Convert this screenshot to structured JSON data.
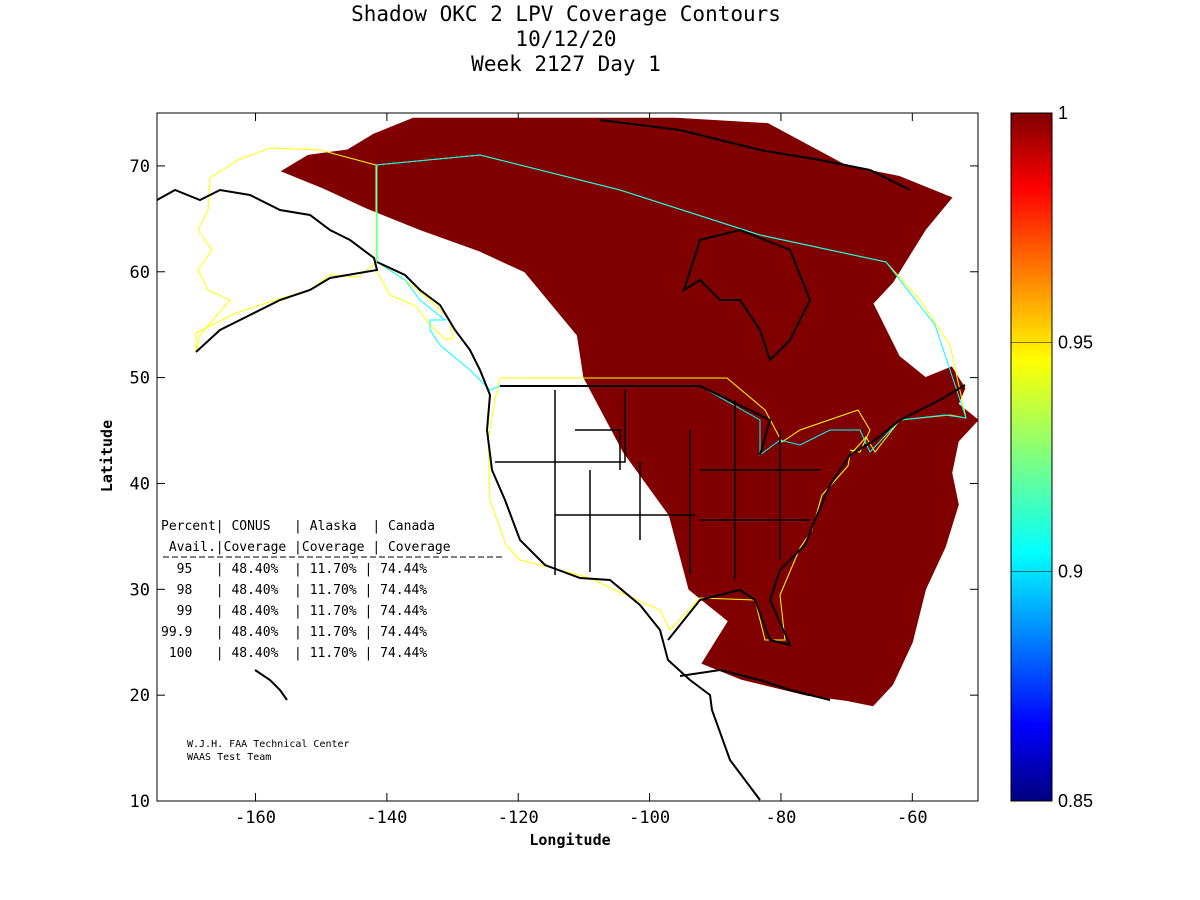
{
  "title": {
    "line1": "Shadow OKC 2 LPV Coverage Contours",
    "line2": "10/12/20",
    "line3": "Week 2127 Day 1"
  },
  "axes": {
    "xlabel": "Longitude",
    "ylabel": "Latitude",
    "xticks": [
      "-160",
      "-140",
      "-120",
      "-100",
      "-80",
      "-60"
    ],
    "yticks": [
      "10",
      "20",
      "30",
      "40",
      "50",
      "60",
      "70"
    ]
  },
  "colorbar": {
    "ticks": [
      "1",
      "0.95",
      "0.9",
      "0.85"
    ],
    "range": [
      0.85,
      1
    ],
    "colormap": "jet"
  },
  "table": {
    "header1": "Percent| CONUS   | Alaska  | Canada",
    "header2": " Avail.|Coverage |Coverage | Coverage",
    "rows": [
      "  95   | 48.40%  | 11.70% | 74.44%",
      "  98   | 48.40%  | 11.70% | 74.44%",
      "  99   | 48.40%  | 11.70% | 74.44%",
      "99.9   | 48.40%  | 11.70% | 74.44%",
      " 100   | 48.40%  | 11.70% | 74.44%"
    ]
  },
  "credit": {
    "line1": "W.J.H. FAA Technical Center",
    "line2": "WAAS Test Team"
  },
  "chart_data": {
    "type": "heatmap",
    "title": "Shadow OKC 2 LPV Coverage Contours",
    "subtitle": [
      "10/12/20",
      "Week 2127 Day 1"
    ],
    "xlabel": "Longitude",
    "ylabel": "Latitude",
    "xlim": [
      -175,
      -50
    ],
    "ylim": [
      10,
      75
    ],
    "color_range": [
      0.85,
      1
    ],
    "coverage_color": "#800000",
    "coverage_value": 1,
    "coverage_region_vertices_lonlat": [
      [
        -156,
        69.5
      ],
      [
        -152,
        71
      ],
      [
        -146,
        71.5
      ],
      [
        -142,
        73
      ],
      [
        -136,
        74.5
      ],
      [
        -126,
        74.5
      ],
      [
        -110,
        74.5
      ],
      [
        -96,
        74.5
      ],
      [
        -82,
        74
      ],
      [
        -76,
        72
      ],
      [
        -70,
        70
      ],
      [
        -62,
        69
      ],
      [
        -54,
        67
      ],
      [
        -58,
        64
      ],
      [
        -63,
        59
      ],
      [
        -66,
        57
      ],
      [
        -62,
        52
      ],
      [
        -58,
        50
      ],
      [
        -54,
        51
      ],
      [
        -52,
        49
      ],
      [
        -53,
        47.5
      ],
      [
        -50,
        46
      ],
      [
        -53,
        44
      ],
      [
        -54,
        41
      ],
      [
        -53,
        38
      ],
      [
        -55,
        34
      ],
      [
        -58,
        30
      ],
      [
        -60,
        25
      ],
      [
        -63,
        21
      ],
      [
        -66,
        19
      ],
      [
        -70,
        19.5
      ],
      [
        -76,
        20
      ],
      [
        -86,
        21.5
      ],
      [
        -92,
        23
      ],
      [
        -88,
        27
      ],
      [
        -94,
        30
      ],
      [
        -97,
        37
      ],
      [
        -104,
        43
      ],
      [
        -110,
        50
      ],
      [
        -111,
        54
      ],
      [
        -119,
        60
      ],
      [
        -126,
        62
      ],
      [
        -135,
        64
      ],
      [
        -143,
        66
      ],
      [
        -150,
        68
      ]
    ],
    "table": {
      "columns": [
        "Percent Avail.",
        "CONUS Coverage",
        "Alaska Coverage",
        "Canada Coverage"
      ],
      "rows": [
        [
          "95",
          "48.40%",
          "11.70%",
          "74.44%"
        ],
        [
          "98",
          "48.40%",
          "11.70%",
          "74.44%"
        ],
        [
          "99",
          "48.40%",
          "11.70%",
          "74.44%"
        ],
        [
          "99.9",
          "48.40%",
          "11.70%",
          "74.44%"
        ],
        [
          "100",
          "48.40%",
          "11.70%",
          "74.44%"
        ]
      ]
    }
  }
}
